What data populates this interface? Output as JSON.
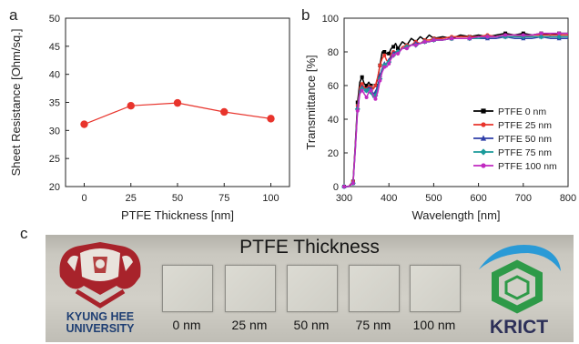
{
  "panel_letters": {
    "a": "a",
    "b": "b",
    "c": "c"
  },
  "chart_data": [
    {
      "type": "line",
      "panel": "a",
      "xlabel": "PTFE Thickness [nm]",
      "ylabel": "Sheet Resistance [Ohm/sq.]",
      "xlim": [
        -10,
        110
      ],
      "ylim": [
        20,
        50
      ],
      "xticks": [
        0,
        25,
        50,
        75,
        100
      ],
      "yticks": [
        20,
        25,
        30,
        35,
        40,
        45,
        50
      ],
      "grid": false,
      "series": [
        {
          "x": [
            0,
            25,
            50,
            75,
            100
          ],
          "values": [
            31.1,
            34.4,
            34.9,
            33.3,
            32.1
          ],
          "color": "#e8342c",
          "marker": "circle"
        }
      ]
    },
    {
      "type": "line",
      "panel": "b",
      "xlabel": "Wavelength [nm]",
      "ylabel": "Transmittance [%]",
      "xlim": [
        300,
        800
      ],
      "ylim": [
        0,
        100
      ],
      "xticks": [
        300,
        400,
        500,
        600,
        700,
        800
      ],
      "yticks": [
        0,
        20,
        40,
        60,
        80,
        100
      ],
      "grid": false,
      "legend_position": "lower-right",
      "x": [
        300,
        310,
        320,
        325,
        330,
        335,
        340,
        345,
        350,
        355,
        360,
        365,
        370,
        375,
        380,
        385,
        390,
        395,
        400,
        405,
        410,
        415,
        420,
        430,
        440,
        450,
        460,
        470,
        480,
        490,
        500,
        520,
        540,
        560,
        580,
        600,
        620,
        640,
        660,
        680,
        700,
        720,
        740,
        760,
        780,
        800
      ],
      "series": [
        {
          "name": "PTFE 0 nm",
          "color": "#000000",
          "marker": "square",
          "values": [
            0,
            0,
            3,
            25,
            50,
            62,
            65,
            61,
            60,
            62,
            60,
            58,
            60,
            64,
            72,
            80,
            80,
            79,
            79,
            82,
            83,
            85,
            82,
            86,
            84,
            88,
            86,
            89,
            87,
            90,
            88,
            89,
            88,
            90,
            89,
            90,
            89,
            90,
            91,
            90,
            91,
            90,
            91,
            90,
            91,
            91
          ]
        },
        {
          "name": "PTFE 25 nm",
          "color": "#e8342c",
          "marker": "circle",
          "values": [
            0,
            0,
            3,
            24,
            48,
            59,
            61,
            59,
            58,
            60,
            59,
            58,
            60,
            65,
            72,
            76,
            78,
            75,
            74,
            79,
            80,
            80,
            79,
            83,
            84,
            84,
            86,
            85,
            87,
            87,
            88,
            88,
            89,
            89,
            89,
            89,
            90,
            89,
            90,
            90,
            89,
            90,
            90,
            90,
            90,
            90
          ]
        },
        {
          "name": "PTFE 50 nm",
          "color": "#2f3fa8",
          "marker": "triangle",
          "values": [
            0,
            0,
            2,
            23,
            47,
            57,
            59,
            58,
            57,
            59,
            58,
            55,
            56,
            60,
            66,
            70,
            73,
            73,
            75,
            77,
            79,
            80,
            80,
            82,
            83,
            84,
            85,
            85,
            86,
            86,
            87,
            87,
            88,
            88,
            88,
            88,
            88,
            88,
            89,
            88,
            88,
            88,
            89,
            88,
            88,
            88
          ]
        },
        {
          "name": "PTFE 75 nm",
          "color": "#1a9a9a",
          "marker": "diamond",
          "values": [
            0,
            0,
            2,
            22,
            46,
            56,
            58,
            58,
            57,
            58,
            56,
            53,
            54,
            58,
            64,
            69,
            72,
            73,
            74,
            76,
            78,
            79,
            80,
            82,
            83,
            84,
            84,
            85,
            86,
            86,
            87,
            87,
            88,
            88,
            88,
            88,
            89,
            89,
            89,
            89,
            89,
            89,
            89,
            89,
            89,
            89
          ]
        },
        {
          "name": "PTFE 100 nm",
          "color": "#c02ac0",
          "marker": "circle",
          "values": [
            0,
            0,
            2,
            22,
            45,
            55,
            57,
            55,
            53,
            56,
            57,
            54,
            52,
            56,
            63,
            68,
            71,
            71,
            73,
            76,
            78,
            79,
            79,
            82,
            82,
            84,
            84,
            85,
            86,
            86,
            87,
            87,
            88,
            88,
            88,
            89,
            89,
            89,
            90,
            90,
            90,
            90,
            91,
            91,
            91,
            91
          ]
        }
      ]
    }
  ],
  "photo": {
    "title": "PTFE Thickness",
    "samples": [
      "0 nm",
      "25 nm",
      "50 nm",
      "75 nm",
      "100 nm"
    ],
    "university_logo_text": "KYUNG HEE UNIVERSITY",
    "university_name_line1": "KYUNG HEE",
    "university_name_line2": "UNIVERSITY",
    "institute_logo_text": "KRICT"
  }
}
